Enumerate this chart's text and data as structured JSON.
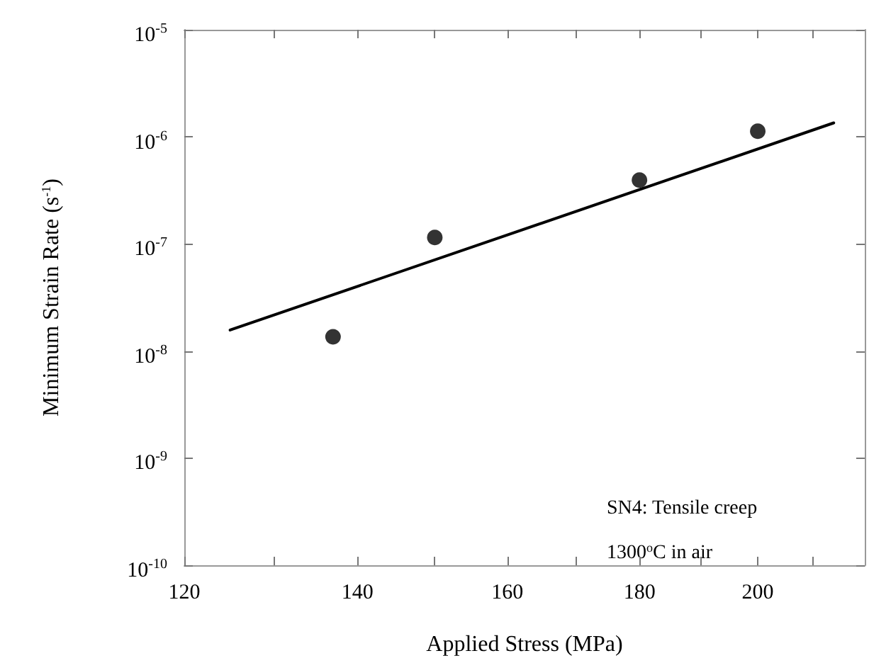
{
  "chart_data": {
    "type": "scatter",
    "xlabel": "Applied Stress (MPa)",
    "ylabel": "Minimum Strain Rate (s$^{-1}$)",
    "log": "xy",
    "marker": "circle",
    "grid": false,
    "xlim": [
      120,
      220
    ],
    "xticks": [
      120,
      {
        "value": 130,
        "label": null
      },
      140,
      {
        "value": 150,
        "label": null
      },
      160,
      {
        "value": 170,
        "label": null
      },
      180,
      {
        "value": 190,
        "label": null
      },
      200,
      {
        "value": 210,
        "label": null
      }
    ],
    "ylim": [
      1e-10,
      1e-05
    ],
    "yticks": [
      {
        "value": 1e-10,
        "label": "10$^{-10}$"
      },
      {
        "value": 1e-09,
        "label": "10$^{-9}$"
      },
      {
        "value": 1e-08,
        "label": "10$^{-8}$"
      },
      {
        "value": 1e-07,
        "label": "10$^{-7}$"
      },
      {
        "value": 1e-06,
        "label": "10$^{-6}$"
      },
      {
        "value": 1e-05,
        "label": "10$^{-5}$"
      }
    ],
    "series": [
      {
        "color": "#000000",
        "x": [
          137,
          150,
          180,
          200
        ],
        "values": [
          1.36e-08,
          1.15e-07,
          3.95e-07,
          1.13e-06
        ]
      },
      {
        "type": "line",
        "color": "#000000",
        "marker": "none",
        "line_style": "solid",
        "x": [
          125,
          214
        ],
        "values": [
          1.57e-08,
          1.35e-06
        ]
      }
    ],
    "annotations": [
      "SN4: Tensile creep",
      "1300$^{o}$C in air"
    ]
  }
}
